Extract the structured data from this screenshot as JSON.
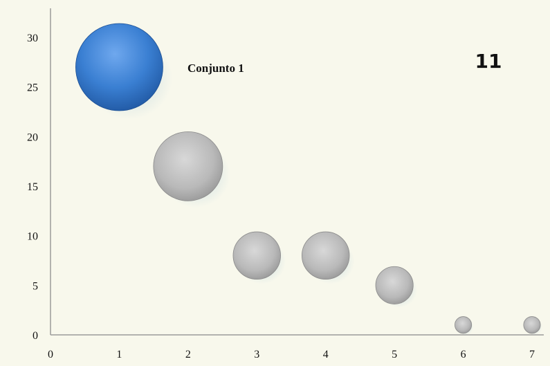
{
  "page_number": "11",
  "colors": {
    "background": "#f8f8ec",
    "highlight_bubble": "#2f6fc4",
    "default_bubble": "#b8b8b8"
  },
  "chart_data": {
    "type": "bubble",
    "title": "",
    "xlabel": "",
    "ylabel": "",
    "xlim": [
      0,
      7
    ],
    "ylim": [
      0,
      32
    ],
    "x_ticks": [
      "0",
      "1",
      "2",
      "3",
      "4",
      "5",
      "6",
      "7"
    ],
    "y_ticks": [
      "0",
      "5",
      "10",
      "15",
      "20",
      "25",
      "30"
    ],
    "grid": false,
    "series": [
      {
        "name": "Conjunto 1",
        "points": [
          {
            "x": 1,
            "y": 27,
            "size": 27,
            "highlight": true
          },
          {
            "x": 2,
            "y": 17,
            "size": 17,
            "highlight": false
          },
          {
            "x": 3,
            "y": 8,
            "size": 8,
            "highlight": false
          },
          {
            "x": 4,
            "y": 8,
            "size": 8,
            "highlight": false
          },
          {
            "x": 5,
            "y": 5,
            "size": 5,
            "highlight": false
          },
          {
            "x": 6,
            "y": 1,
            "size": 1,
            "highlight": false
          },
          {
            "x": 7,
            "y": 1,
            "size": 1,
            "highlight": false
          }
        ]
      }
    ]
  }
}
